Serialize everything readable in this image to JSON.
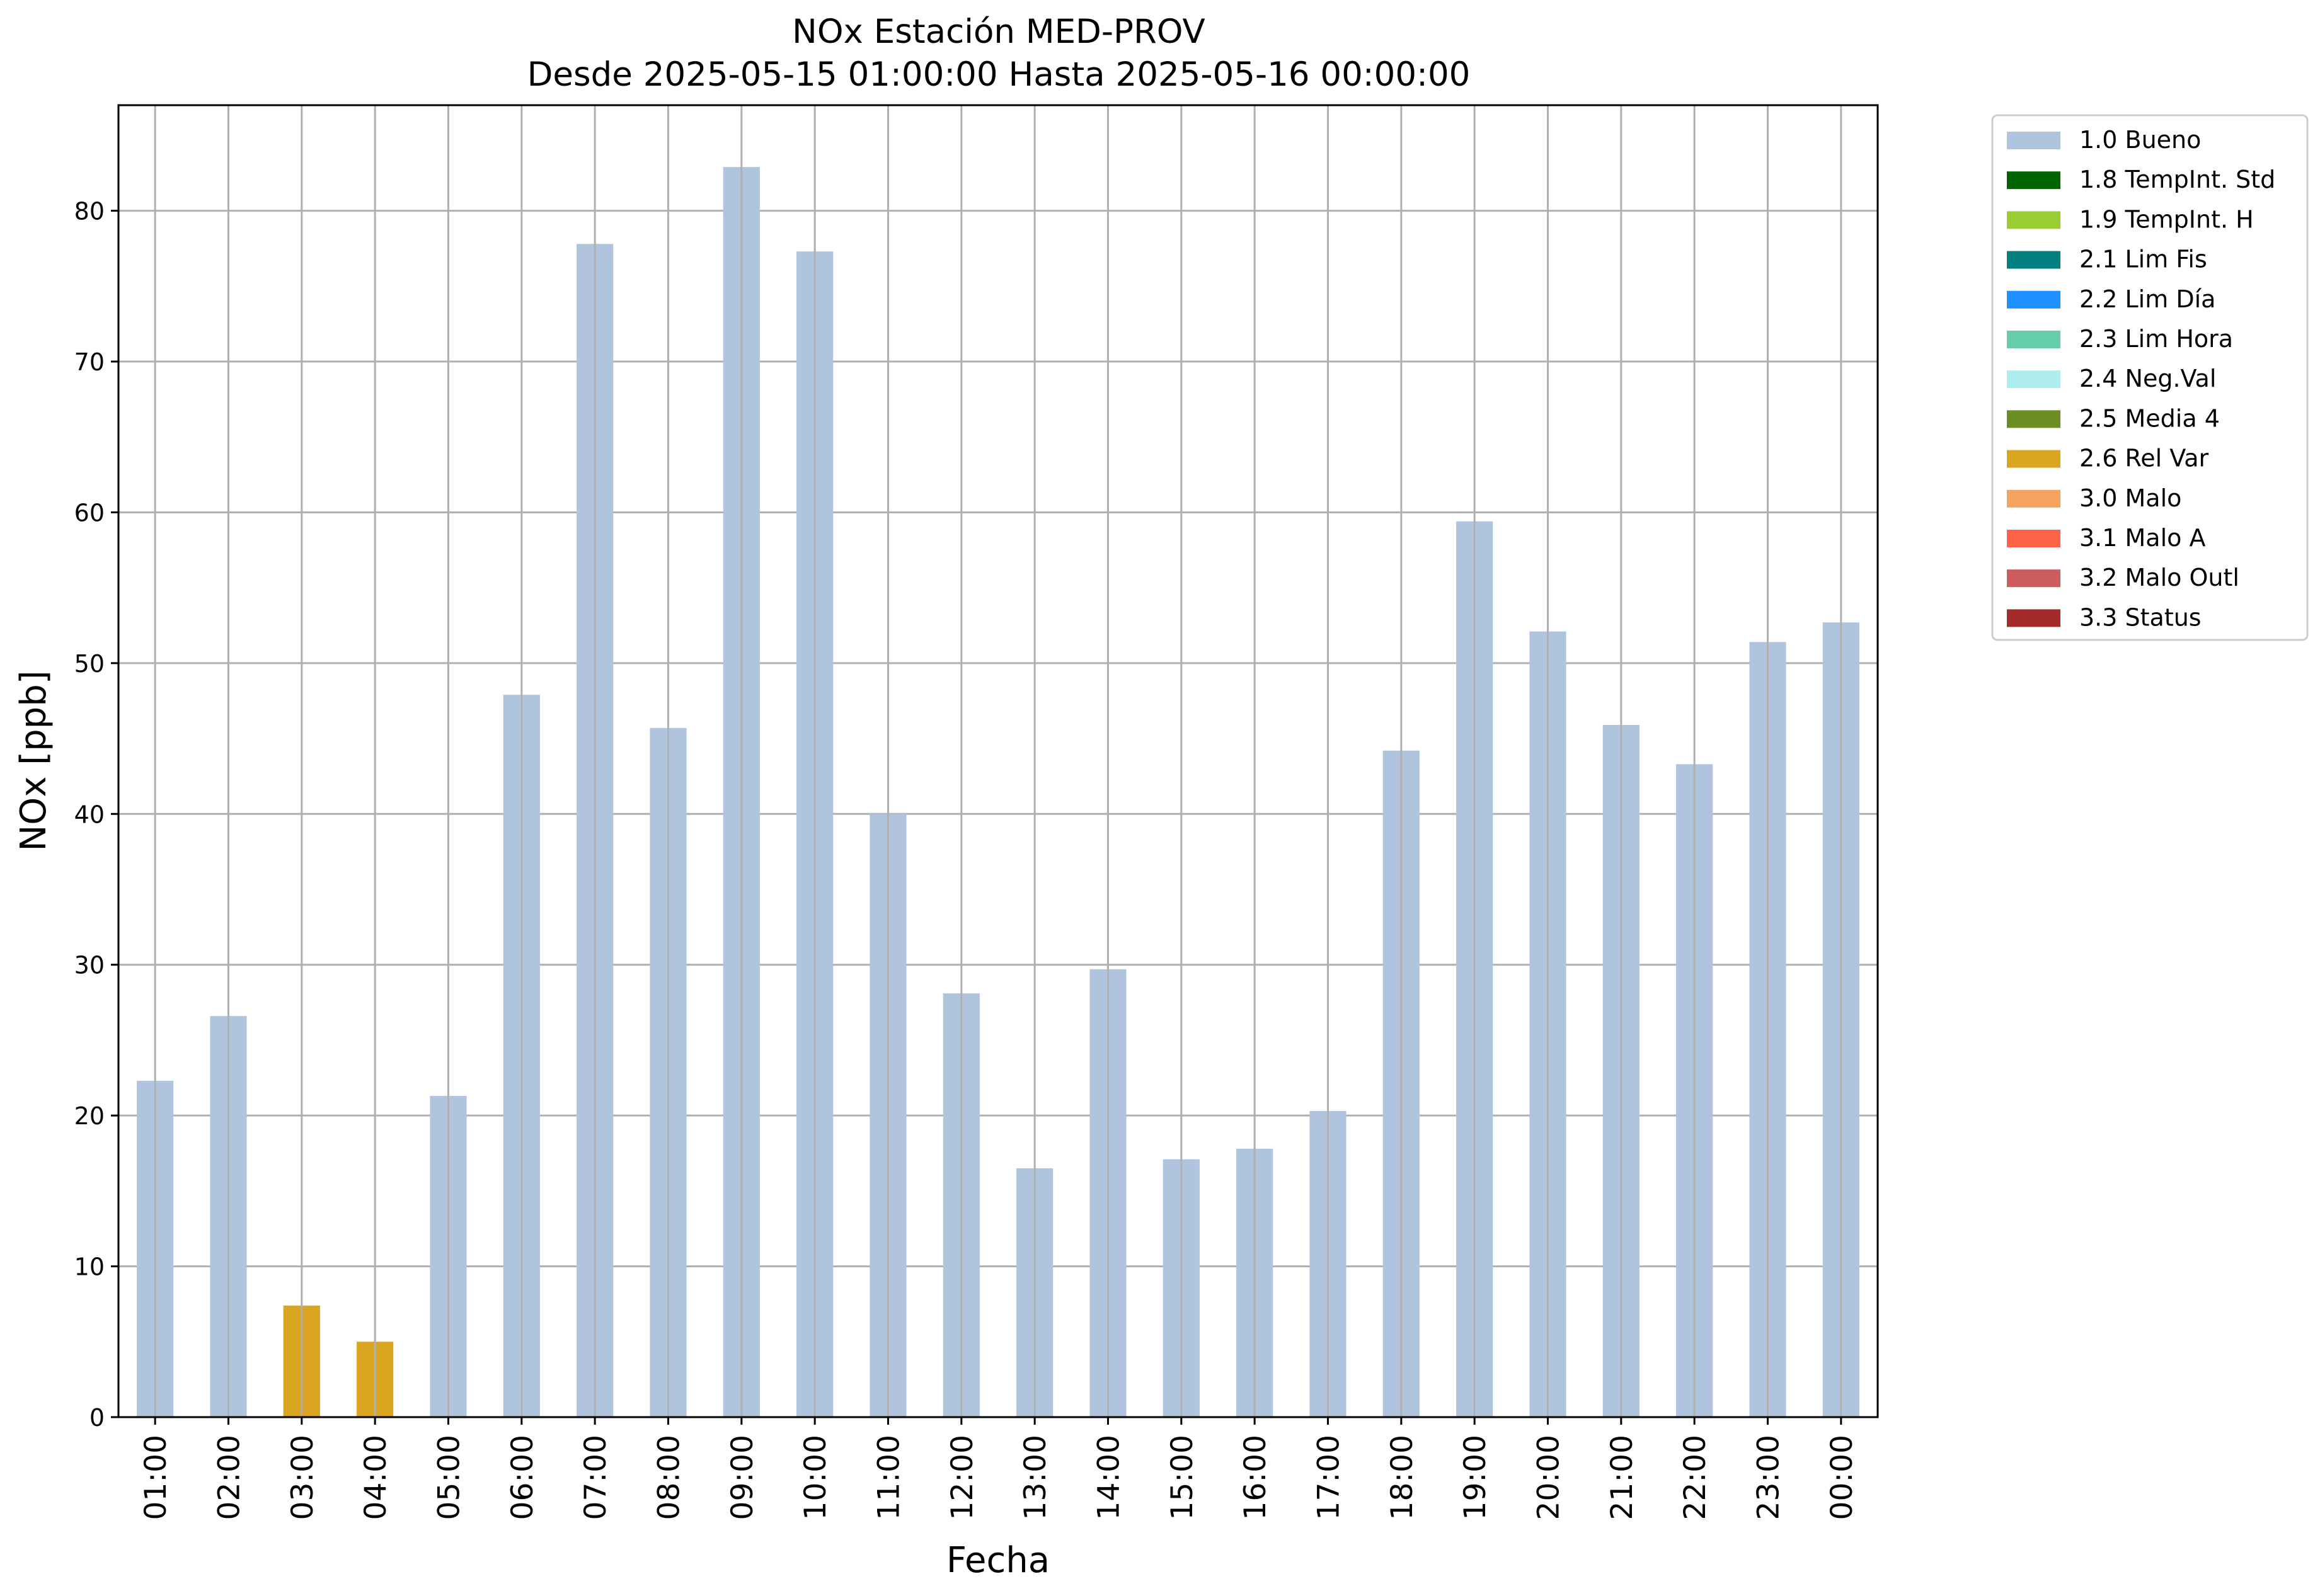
{
  "chart_data": {
    "type": "bar",
    "title": "NOx Estación MED-PROV",
    "subtitle": "Desde 2025-05-15 01:00:00 Hasta 2025-05-16 00:00:00",
    "xlabel": "Fecha",
    "ylabel": "NOx [ppb]",
    "ylim": [
      0,
      87
    ],
    "yticks": [
      0,
      10,
      20,
      30,
      40,
      50,
      60,
      70,
      80
    ],
    "grid": true,
    "legend_position": "outside-right-top",
    "categories": [
      "01:00",
      "02:00",
      "03:00",
      "04:00",
      "05:00",
      "06:00",
      "07:00",
      "08:00",
      "09:00",
      "10:00",
      "11:00",
      "12:00",
      "13:00",
      "14:00",
      "15:00",
      "16:00",
      "17:00",
      "18:00",
      "19:00",
      "20:00",
      "21:00",
      "22:00",
      "23:00",
      "00:00"
    ],
    "values": [
      22.3,
      26.6,
      7.4,
      5.0,
      21.3,
      47.9,
      77.8,
      45.7,
      82.9,
      77.3,
      40.0,
      28.1,
      16.5,
      29.7,
      17.1,
      17.8,
      20.3,
      44.2,
      59.4,
      52.1,
      45.9,
      43.3,
      51.4,
      52.7
    ],
    "flags": [
      "1.0 Bueno",
      "1.0 Bueno",
      "2.6 Rel Var",
      "2.6 Rel Var",
      "1.0 Bueno",
      "1.0 Bueno",
      "1.0 Bueno",
      "1.0 Bueno",
      "1.0 Bueno",
      "1.0 Bueno",
      "1.0 Bueno",
      "1.0 Bueno",
      "1.0 Bueno",
      "1.0 Bueno",
      "1.0 Bueno",
      "1.0 Bueno",
      "1.0 Bueno",
      "1.0 Bueno",
      "1.0 Bueno",
      "1.0 Bueno",
      "1.0 Bueno",
      "1.0 Bueno",
      "1.0 Bueno",
      "1.0 Bueno"
    ],
    "legend": [
      {
        "label": "1.0 Bueno",
        "color": "#b0c4de"
      },
      {
        "label": "1.8 TempInt. Std",
        "color": "#006400"
      },
      {
        "label": "1.9 TempInt. H",
        "color": "#9acd32"
      },
      {
        "label": "2.1 Lim Fis",
        "color": "#008080"
      },
      {
        "label": "2.2 Lim Día",
        "color": "#1e90ff"
      },
      {
        "label": "2.3 Lim Hora",
        "color": "#66cdaa"
      },
      {
        "label": "2.4 Neg.Val",
        "color": "#afeeee"
      },
      {
        "label": "2.5 Media 4",
        "color": "#6b8e23"
      },
      {
        "label": "2.6 Rel Var",
        "color": "#daa520"
      },
      {
        "label": "3.0 Malo",
        "color": "#f4a460"
      },
      {
        "label": "3.1 Malo A",
        "color": "#ff6347"
      },
      {
        "label": "3.2 Malo Outl",
        "color": "#cd5c5c"
      },
      {
        "label": "3.3 Status",
        "color": "#a52a2a"
      }
    ]
  }
}
